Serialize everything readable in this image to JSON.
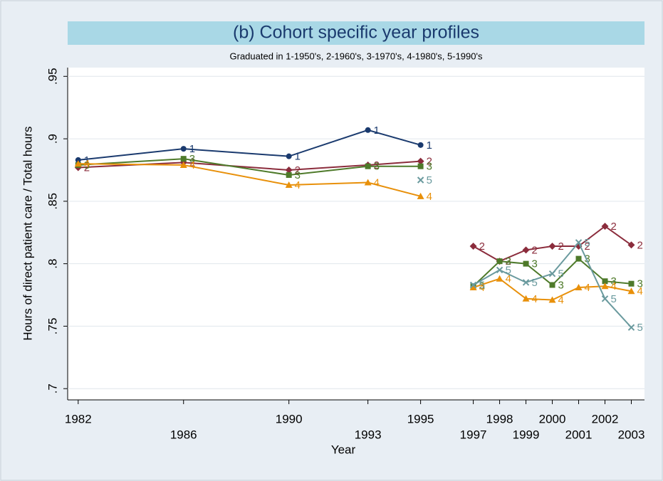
{
  "chart_data": {
    "type": "line",
    "title": "(b) Cohort specific year profiles",
    "subtitle": "Graduated in 1-1950's, 2-1960's, 3-1970's, 4-1980's, 5-1990's",
    "x_label": "Year",
    "y_label": "Hours of direct patient care / Total hours",
    "xlim": [
      1981.6,
      2003.5
    ],
    "xticks": [
      1982,
      1986,
      1990,
      1993,
      1995,
      1997,
      1998,
      1999,
      2000,
      2001,
      2002,
      2003
    ],
    "ylim": [
      0.691,
      0.957
    ],
    "yticks": [
      {
        "value": 0.7,
        "label": ".7"
      },
      {
        "value": 0.75,
        "label": ".75"
      },
      {
        "value": 0.8,
        "label": ".8"
      },
      {
        "value": 0.85,
        "label": ".85"
      },
      {
        "value": 0.9,
        "label": ".9"
      },
      {
        "value": 0.95,
        "label": ".95"
      }
    ],
    "grid": true,
    "series": [
      {
        "name": "1",
        "color": "#1a3a6e",
        "marker": "circle",
        "x": [
          1982,
          1986,
          1990,
          1993,
          1995
        ],
        "values": [
          0.883,
          0.892,
          0.886,
          0.907,
          0.895
        ]
      },
      {
        "name": "2",
        "color": "#8b2c3c",
        "marker": "diamond",
        "x": [
          1982,
          1986,
          1990,
          1993,
          1995
        ],
        "values": [
          0.877,
          0.881,
          0.875,
          0.879,
          0.882
        ]
      },
      {
        "name": "3",
        "color": "#4e7a2a",
        "marker": "square",
        "x": [
          1982,
          1986,
          1990,
          1993,
          1995
        ],
        "values": [
          0.879,
          0.884,
          0.871,
          0.878,
          0.878
        ]
      },
      {
        "name": "4",
        "color": "#e8900a",
        "marker": "triangle",
        "x": [
          1982,
          1986,
          1990,
          1993,
          1995
        ],
        "values": [
          0.88,
          0.879,
          0.863,
          0.865,
          0.854
        ]
      },
      {
        "name": "5",
        "color": "#6a9a9e",
        "marker": "x",
        "x": [
          1995
        ],
        "values": [
          0.867
        ]
      },
      {
        "name": "2",
        "color": "#8b2c3c",
        "marker": "diamond",
        "x": [
          1997,
          1998,
          1999,
          2000,
          2001,
          2002,
          2003
        ],
        "values": [
          0.814,
          0.802,
          0.811,
          0.814,
          0.814,
          0.83,
          0.815
        ]
      },
      {
        "name": "3",
        "color": "#4e7a2a",
        "marker": "square",
        "x": [
          1997,
          1998,
          1999,
          2000,
          2001,
          2002,
          2003
        ],
        "values": [
          0.782,
          0.802,
          0.8,
          0.783,
          0.804,
          0.786,
          0.784
        ]
      },
      {
        "name": "4",
        "color": "#e8900a",
        "marker": "triangle",
        "x": [
          1997,
          1998,
          1999,
          2000,
          2001,
          2002,
          2003
        ],
        "values": [
          0.781,
          0.788,
          0.772,
          0.771,
          0.781,
          0.782,
          0.778
        ]
      },
      {
        "name": "5",
        "color": "#6a9a9e",
        "marker": "x",
        "x": [
          1997,
          1998,
          1999,
          2000,
          2001,
          2002,
          2003
        ],
        "values": [
          0.783,
          0.795,
          0.785,
          0.792,
          0.817,
          0.772,
          0.749
        ]
      }
    ]
  }
}
